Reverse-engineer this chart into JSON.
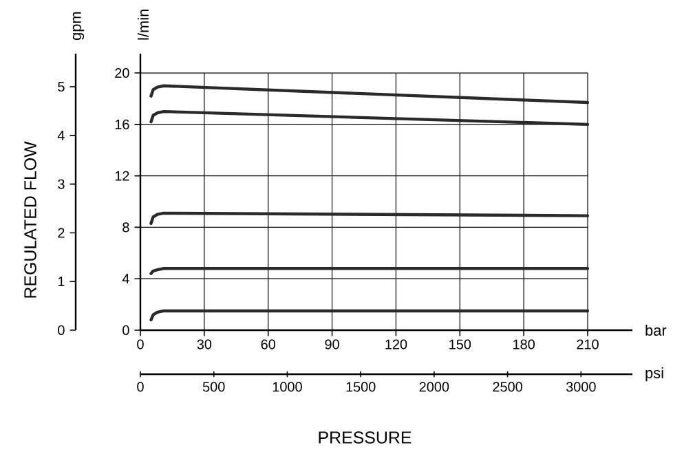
{
  "chart_data": {
    "type": "line",
    "x": [
      5,
      6,
      8,
      11,
      210
    ],
    "series": [
      {
        "color": "#2a2a2a",
        "values": [
          18.2,
          18.7,
          18.9,
          19.0,
          17.7
        ]
      },
      {
        "color": "#2a2a2a",
        "values": [
          16.2,
          16.7,
          16.9,
          17.0,
          16.0
        ]
      },
      {
        "color": "#2a2a2a",
        "values": [
          8.3,
          8.8,
          9.0,
          9.1,
          8.9
        ]
      },
      {
        "color": "#2a2a2a",
        "values": [
          4.4,
          4.6,
          4.7,
          4.8,
          4.8
        ]
      },
      {
        "color": "#2a2a2a",
        "values": [
          0.8,
          1.2,
          1.4,
          1.5,
          1.5
        ]
      }
    ],
    "xlabel": "bar",
    "x2label": "psi",
    "ylabel": "l/min",
    "y2label": "gpm",
    "annotations": [
      "REGULATED FLOW",
      "PRESSURE"
    ],
    "xlim": [
      0,
      231
    ],
    "xticks": [
      0,
      30,
      60,
      90,
      120,
      150,
      180,
      210
    ],
    "x2lim": [
      0,
      3350
    ],
    "x2ticks": [
      0,
      500,
      1000,
      1500,
      2000,
      2500,
      3000
    ],
    "ylim": [
      0,
      21.5
    ],
    "yticks": [
      0,
      4,
      8,
      12,
      16,
      20
    ],
    "y2lim": [
      0,
      5.68
    ],
    "y2ticks": [
      0,
      1,
      2,
      3,
      4,
      5
    ],
    "grid": true,
    "line_style": "solid"
  }
}
